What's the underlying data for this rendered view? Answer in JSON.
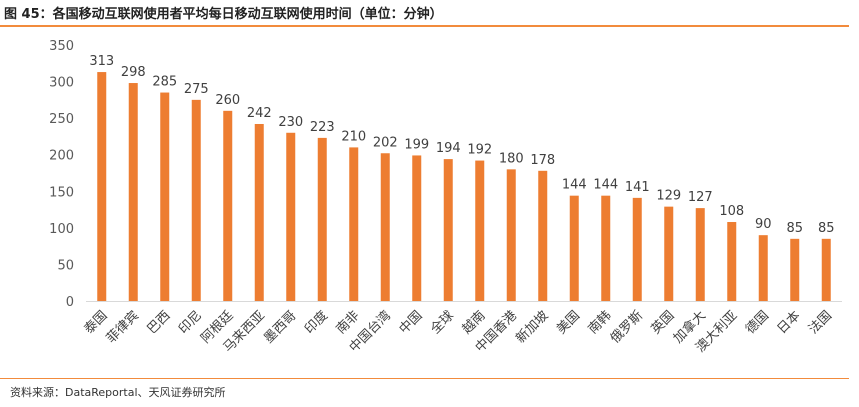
{
  "title": "图 45：各国移动互联网使用者平均每日移动互联网使用时间（单位：分钟）",
  "source": "资料来源：DataReportal、天风证券研究所",
  "chart_data": {
    "type": "bar",
    "title": "",
    "xlabel": "",
    "ylabel": "",
    "ylim": [
      0,
      350
    ],
    "yticks": [
      0,
      50,
      100,
      150,
      200,
      250,
      300,
      350
    ],
    "grid": false,
    "legend": "none",
    "bar_color": "#ed7d31",
    "categories": [
      "泰国",
      "菲律宾",
      "巴西",
      "印尼",
      "阿根廷",
      "马来西亚",
      "墨西哥",
      "印度",
      "南非",
      "中国台湾",
      "中国",
      "全球",
      "越南",
      "中国香港",
      "新加坡",
      "美国",
      "南韩",
      "俄罗斯",
      "英国",
      "加拿大",
      "澳大利亚",
      "德国",
      "日本",
      "法国"
    ],
    "values": [
      313,
      298,
      285,
      275,
      260,
      242,
      230,
      223,
      210,
      202,
      199,
      194,
      192,
      180,
      178,
      144,
      144,
      141,
      129,
      127,
      108,
      90,
      85,
      85
    ]
  }
}
